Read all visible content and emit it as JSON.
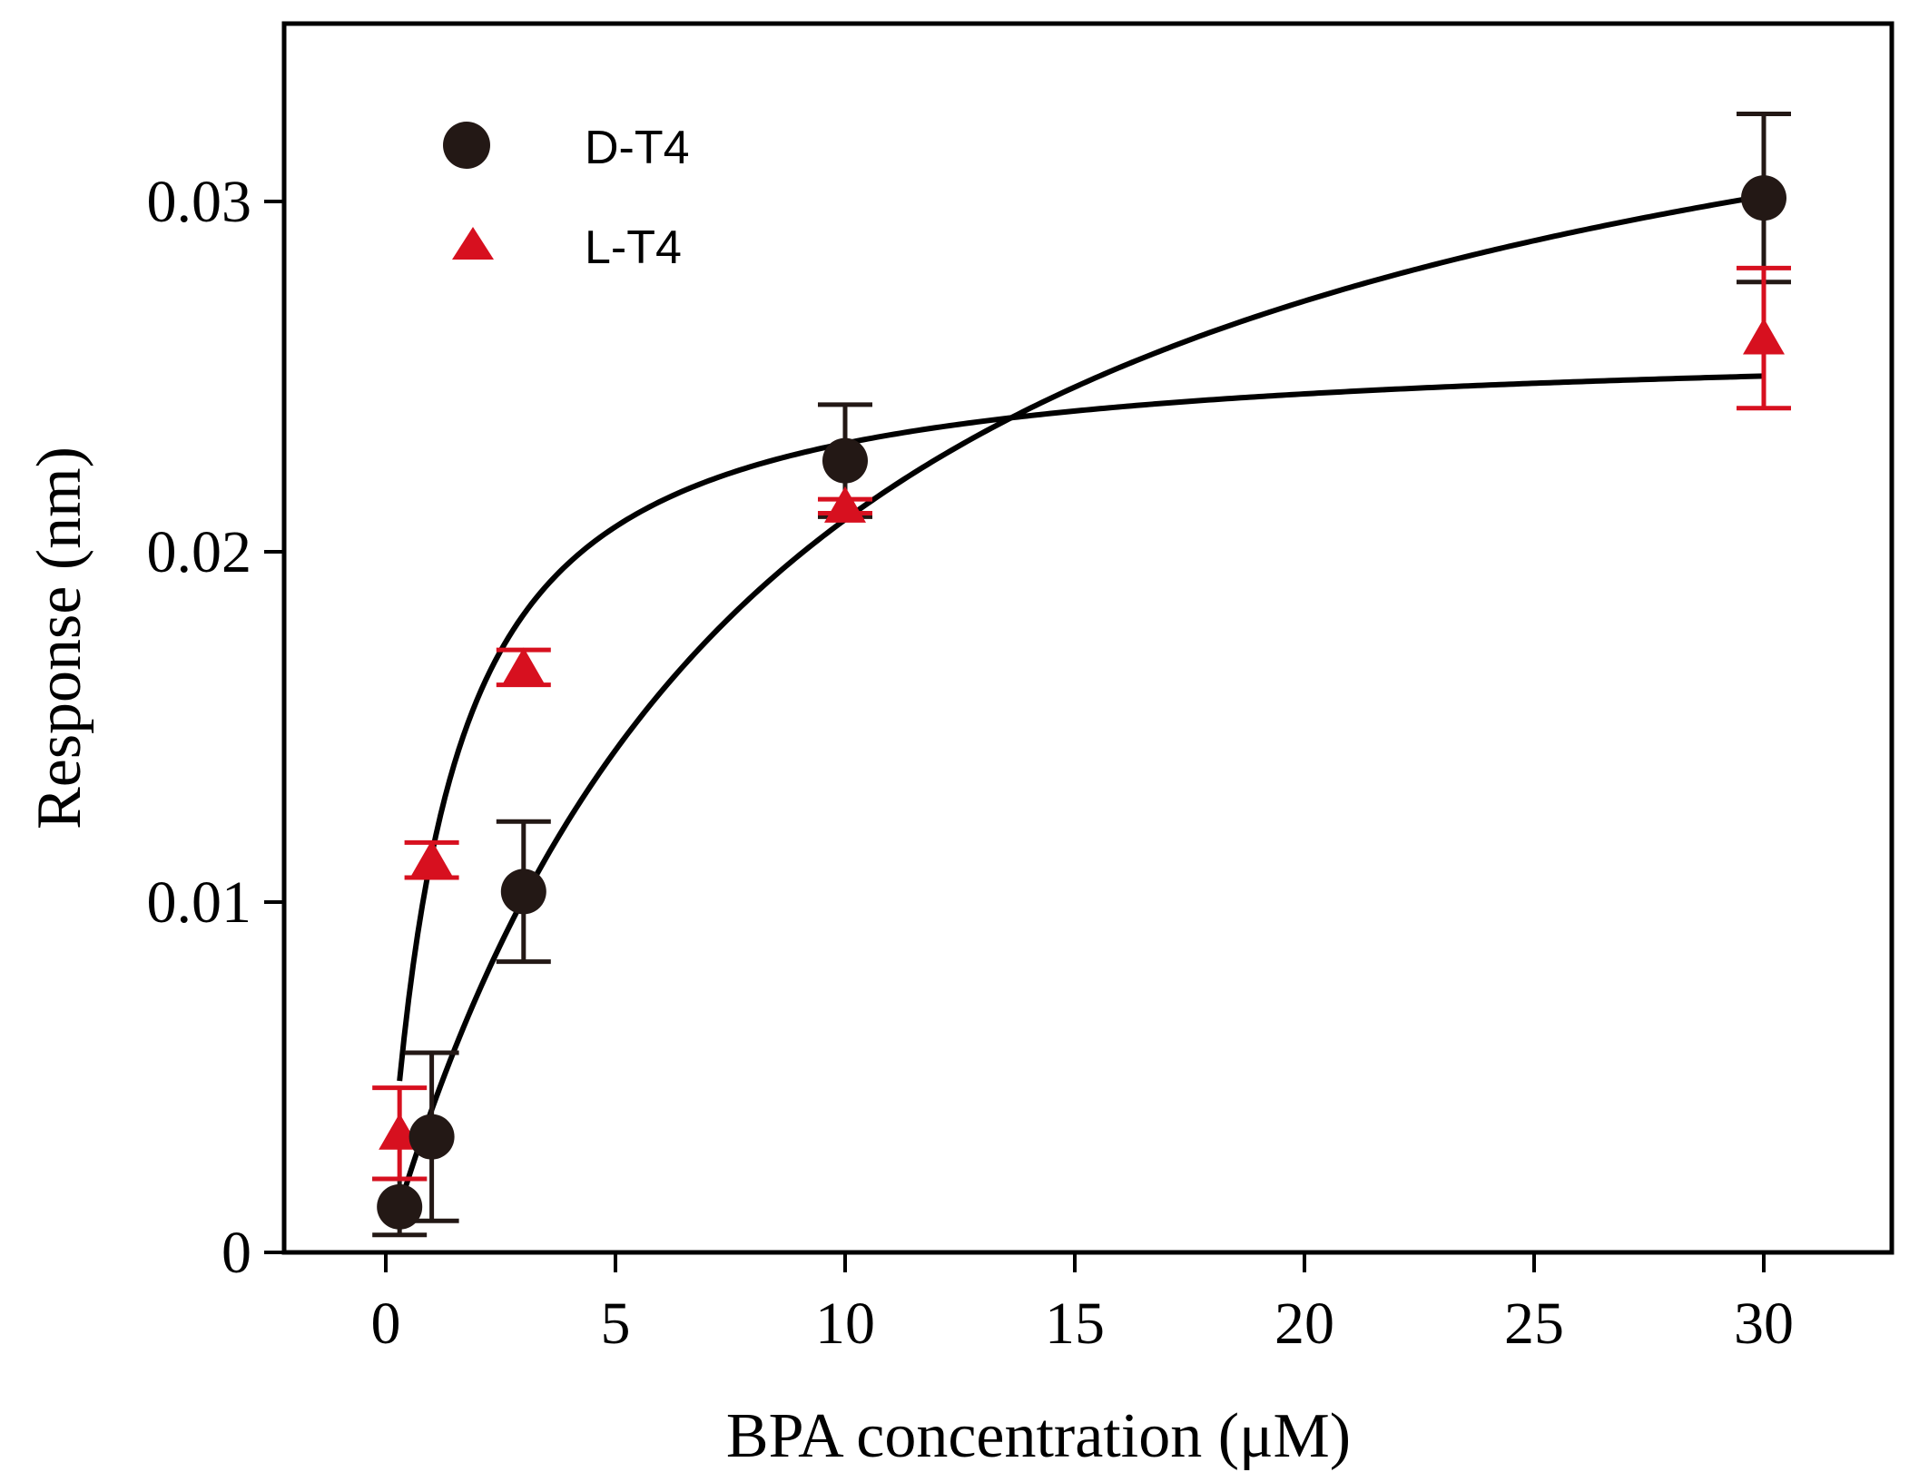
{
  "chart_data": {
    "type": "scatter",
    "title": "",
    "xlabel": "BPA concentration (μM)",
    "ylabel": "Response (nm)",
    "xlim": [
      -2,
      32
    ],
    "ylim": [
      0,
      0.035
    ],
    "xticks": [
      "0",
      "5",
      "10",
      "15",
      "20",
      "25",
      "30"
    ],
    "xtick_values": [
      0,
      5,
      10,
      15,
      20,
      25,
      30
    ],
    "yticks": [
      "0",
      "0.01",
      "0.02",
      "0.03"
    ],
    "ytick_values": [
      0,
      0.01,
      0.02,
      0.03
    ],
    "grid": false,
    "legend_position": "top-left",
    "series": [
      {
        "name": "D-T4",
        "marker": "circle",
        "color": "#231815",
        "x": [
          0.3,
          1,
          3,
          10,
          30
        ],
        "y": [
          0.0013,
          0.0033,
          0.0103,
          0.0226,
          0.0301
        ],
        "err": [
          0.0008,
          0.0024,
          0.002,
          0.0016,
          0.0024
        ],
        "fit": {
          "model": "hyperbolic",
          "bmax": 0.0387,
          "kd": 8.5
        }
      },
      {
        "name": "L-T4",
        "marker": "triangle",
        "color": "#d7101f",
        "x": [
          0.3,
          1,
          3,
          10,
          30
        ],
        "y": [
          0.0034,
          0.0112,
          0.0167,
          0.0213,
          0.0261
        ],
        "err": [
          0.0013,
          0.0005,
          0.0005,
          0.0002,
          0.002
        ],
        "fit": {
          "model": "hyperbolic",
          "bmax": 0.0261,
          "kd": 1.3
        }
      }
    ]
  }
}
